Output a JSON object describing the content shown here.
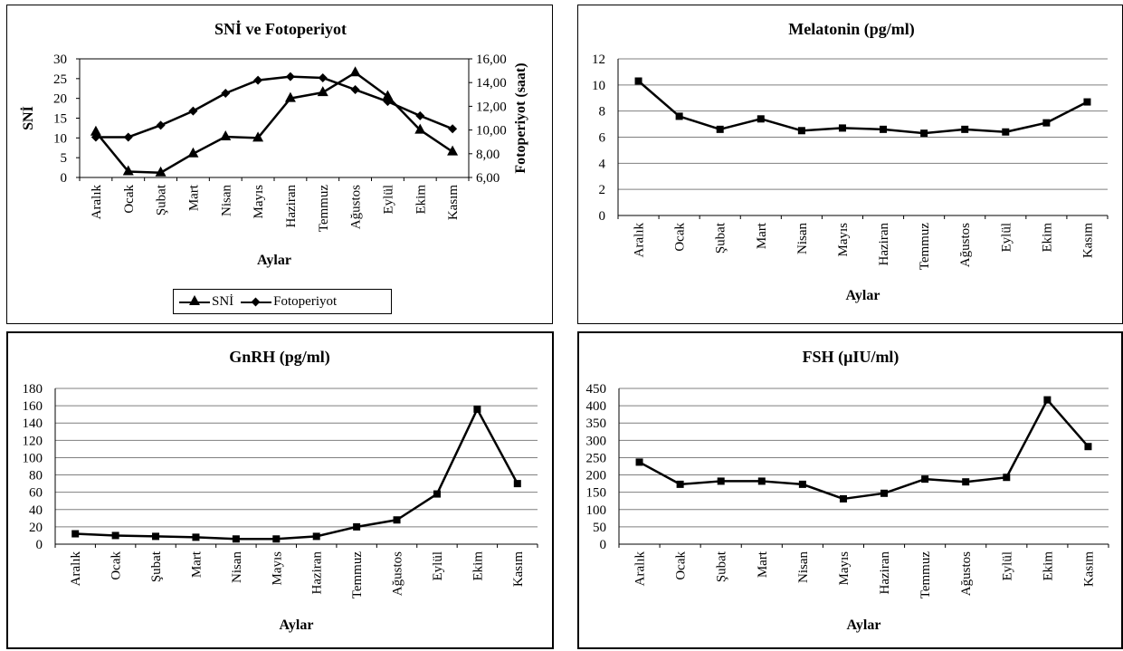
{
  "chart_data": [
    {
      "type": "line",
      "title": "SNİ ve Fotoperiyot",
      "xlabel": "Aylar",
      "ylabel": "SNİ",
      "y2label": "Fotoperiyot (saat)",
      "categories": [
        "Aralık",
        "Ocak",
        "Şubat",
        "Mart",
        "Nisan",
        "Mayıs",
        "Haziran",
        "Temmuz",
        "Ağustos",
        "Eylül",
        "Ekim",
        "Kasım"
      ],
      "ylim": [
        0,
        30
      ],
      "yticks": [
        "0",
        "5",
        "10",
        "15",
        "20",
        "25",
        "30"
      ],
      "y2lim": [
        6,
        16
      ],
      "y2ticks": [
        "6,00",
        "8,00",
        "10,00",
        "12,00",
        "14,00",
        "16,00"
      ],
      "grid": false,
      "legend_position": "bottom",
      "series": [
        {
          "name": "SNİ",
          "axis": "left",
          "marker": "triangle",
          "values": [
            11.5,
            1.5,
            1.2,
            6,
            10.3,
            10,
            20,
            21.5,
            26.5,
            20.5,
            12,
            6.5
          ]
        },
        {
          "name": "Fotoperiyot",
          "axis": "right",
          "marker": "diamond",
          "values": [
            9.4,
            9.4,
            10.4,
            11.6,
            13.1,
            14.2,
            14.5,
            14.4,
            13.4,
            12.4,
            11.2,
            10.1
          ]
        }
      ]
    },
    {
      "type": "line",
      "title": "Melatonin (pg/ml)",
      "xlabel": "Aylar",
      "ylabel": "",
      "categories": [
        "Aralık",
        "Ocak",
        "Şubat",
        "Mart",
        "Nisan",
        "Mayıs",
        "Haziran",
        "Temmuz",
        "Ağustos",
        "Eylül",
        "Ekim",
        "Kasım"
      ],
      "ylim": [
        0,
        12
      ],
      "yticks": [
        "0",
        "2",
        "4",
        "6",
        "8",
        "10",
        "12"
      ],
      "grid": true,
      "series": [
        {
          "marker": "square",
          "values": [
            10.3,
            7.6,
            6.6,
            7.4,
            6.5,
            6.7,
            6.6,
            6.3,
            6.6,
            6.4,
            7.1,
            8.7
          ]
        }
      ]
    },
    {
      "type": "line",
      "title": "GnRH (pg/ml)",
      "xlabel": "Aylar",
      "ylabel": "",
      "categories": [
        "Aralık",
        "Ocak",
        "Şubat",
        "Mart",
        "Nisan",
        "Mayıs",
        "Haziran",
        "Temmuz",
        "Ağustos",
        "Eylül",
        "Ekim",
        "Kasım"
      ],
      "ylim": [
        0,
        180
      ],
      "yticks": [
        "0",
        "20",
        "40",
        "60",
        "80",
        "100",
        "120",
        "140",
        "160",
        "180"
      ],
      "grid": true,
      "series": [
        {
          "marker": "square",
          "values": [
            12,
            10,
            9,
            8,
            6,
            6,
            9,
            20,
            28,
            58,
            156,
            70
          ]
        }
      ]
    },
    {
      "type": "line",
      "title": "FSH (µIU/ml)",
      "xlabel": "Aylar",
      "ylabel": "",
      "categories": [
        "Aralık",
        "Ocak",
        "Şubat",
        "Mart",
        "Nisan",
        "Mayıs",
        "Haziran",
        "Temmuz",
        "Ağustos",
        "Eylül",
        "Ekim",
        "Kasım"
      ],
      "ylim": [
        0,
        450
      ],
      "yticks": [
        "0",
        "50",
        "100",
        "150",
        "200",
        "250",
        "300",
        "350",
        "400",
        "450"
      ],
      "grid": true,
      "series": [
        {
          "marker": "square",
          "values": [
            237,
            173,
            182,
            182,
            173,
            131,
            147,
            188,
            180,
            193,
            417,
            282
          ]
        }
      ]
    }
  ]
}
